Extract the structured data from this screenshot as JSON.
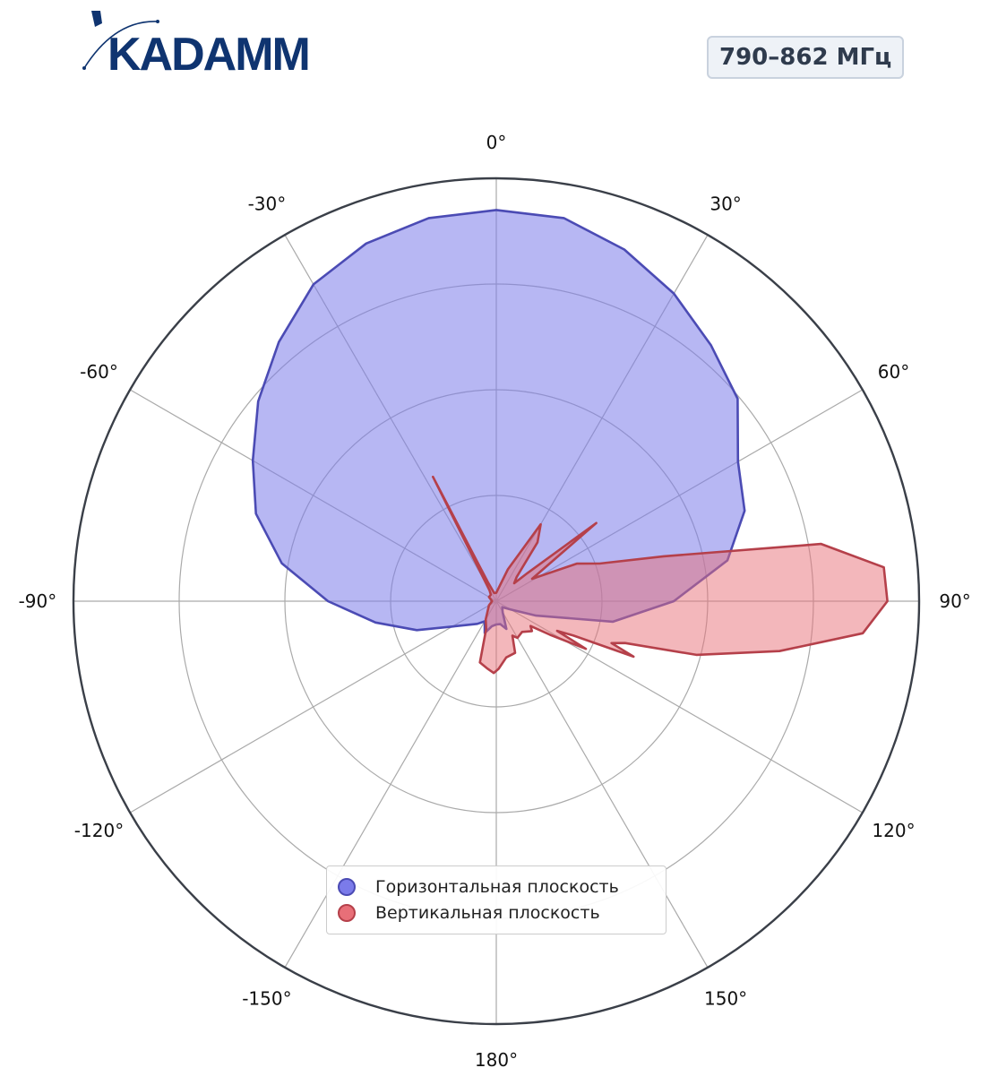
{
  "brand": {
    "logo_text": "KADAMM",
    "color": "#0f3470"
  },
  "frequency_badge": "790–862 МГц",
  "chart_data": {
    "type": "polar-area",
    "theta_direction": "clockwise",
    "theta_zero": "top",
    "theta_ticks": [
      "0°",
      "30°",
      "60°",
      "90°",
      "120°",
      "150°",
      "180°",
      "-150°",
      "-120°",
      "-90°",
      "-60°",
      "-30°"
    ],
    "theta_tick_values": [
      0,
      30,
      60,
      90,
      120,
      150,
      180,
      -150,
      -120,
      -90,
      -60,
      -30
    ],
    "radial_rings": [
      0.25,
      0.5,
      0.75,
      1.0
    ],
    "radial_labels_shown": false,
    "grid": true,
    "legend_position": "bottom-center",
    "series": [
      {
        "name": "Горизонтальная плоскость",
        "line_color": "#4b4bb4",
        "fill_color": "#7b7bea",
        "points": [
          [
            0,
            0.925
          ],
          [
            10,
            0.92
          ],
          [
            20,
            0.885
          ],
          [
            30,
            0.84
          ],
          [
            40,
            0.79
          ],
          [
            50,
            0.745
          ],
          [
            60,
            0.66
          ],
          [
            70,
            0.625
          ],
          [
            80,
            0.555
          ],
          [
            90,
            0.42
          ],
          [
            100,
            0.28
          ],
          [
            110,
            0.1
          ],
          [
            120,
            0.04
          ],
          [
            135,
            0.02
          ],
          [
            150,
            0.03
          ],
          [
            160,
            0.07
          ],
          [
            170,
            0.055
          ],
          [
            180,
            0.055
          ],
          [
            190,
            0.06
          ],
          [
            200,
            0.08
          ],
          [
            210,
            0.055
          ],
          [
            220,
            0.07
          ],
          [
            240,
            0.12
          ],
          [
            250,
            0.2
          ],
          [
            260,
            0.29
          ],
          [
            270,
            0.398
          ],
          [
            280,
            0.515
          ],
          [
            290,
            0.605
          ],
          [
            300,
            0.665
          ],
          [
            310,
            0.735
          ],
          [
            320,
            0.8
          ],
          [
            330,
            0.865
          ],
          [
            340,
            0.9
          ],
          [
            350,
            0.92
          ],
          [
            360,
            0.925
          ]
        ]
      },
      {
        "name": "Вертикальная плоскость",
        "line_color": "#b5404a",
        "fill_color": "#e86f78",
        "points": [
          [
            0,
            0.02
          ],
          [
            20,
            0.08
          ],
          [
            30,
            0.21
          ],
          [
            35,
            0.17
          ],
          [
            40,
            0.075
          ],
          [
            45,
            0.06
          ],
          [
            48,
            0.1
          ],
          [
            52,
            0.3
          ],
          [
            58,
            0.1
          ],
          [
            65,
            0.21
          ],
          [
            70,
            0.26
          ],
          [
            75,
            0.41
          ],
          [
            80,
            0.78
          ],
          [
            85,
            0.92
          ],
          [
            90,
            0.925
          ],
          [
            95,
            0.87
          ],
          [
            100,
            0.68
          ],
          [
            105,
            0.49
          ],
          [
            108,
            0.32
          ],
          [
            110,
            0.29
          ],
          [
            112,
            0.35
          ],
          [
            114,
            0.2
          ],
          [
            116,
            0.16
          ],
          [
            118,
            0.24
          ],
          [
            122,
            0.15
          ],
          [
            126,
            0.1
          ],
          [
            130,
            0.11
          ],
          [
            140,
            0.095
          ],
          [
            150,
            0.1
          ],
          [
            155,
            0.09
          ],
          [
            160,
            0.13
          ],
          [
            170,
            0.135
          ],
          [
            178,
            0.16
          ],
          [
            182,
            0.17
          ],
          [
            188,
            0.16
          ],
          [
            195,
            0.15
          ],
          [
            200,
            0.07
          ],
          [
            210,
            0.05
          ],
          [
            240,
            0.02
          ],
          [
            270,
            0.01
          ],
          [
            300,
            0.02
          ],
          [
            320,
            0.02
          ],
          [
            328,
            0.03
          ],
          [
            333,
            0.33
          ],
          [
            336,
            0.05
          ],
          [
            345,
            0.02
          ],
          [
            360,
            0.02
          ]
        ]
      }
    ]
  }
}
